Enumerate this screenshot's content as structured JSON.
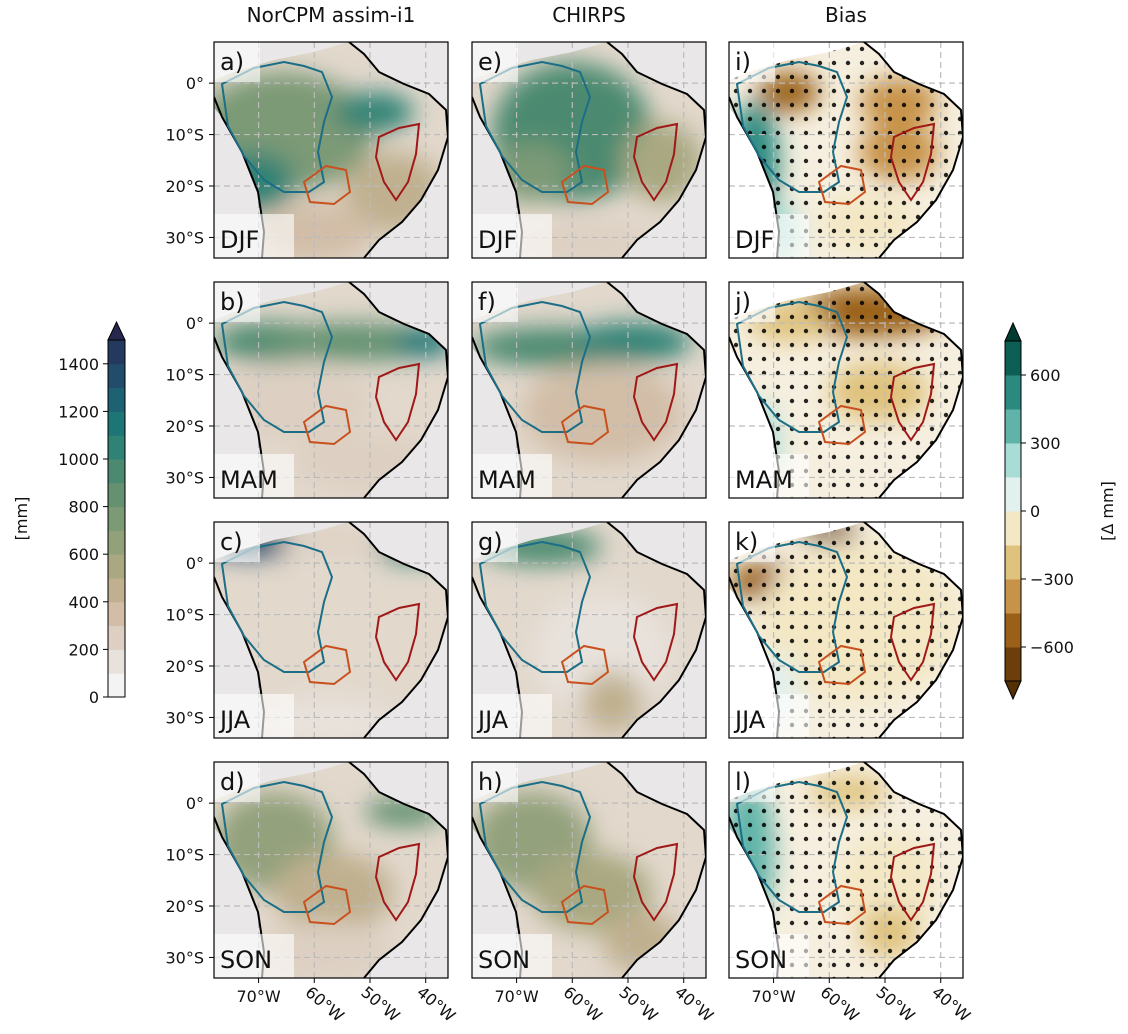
{
  "columns": [
    "NorCPM assim-i1",
    "CHIRPS",
    "Bias"
  ],
  "rows": [
    {
      "season": "DJF",
      "panels": [
        "a)",
        "e)",
        "i)"
      ]
    },
    {
      "season": "MAM",
      "panels": [
        "b)",
        "f)",
        "j)"
      ]
    },
    {
      "season": "JJA",
      "panels": [
        "c)",
        "g)",
        "k)"
      ]
    },
    {
      "season": "SON",
      "panels": [
        "d)",
        "h)",
        "l)"
      ]
    }
  ],
  "lat_range": [
    -34,
    8
  ],
  "lat_ticks": [
    {
      "value": 0,
      "label": "0°"
    },
    {
      "value": -10,
      "label": "10°S"
    },
    {
      "value": -20,
      "label": "20°S"
    },
    {
      "value": -30,
      "label": "30°S"
    }
  ],
  "lon_range": [
    -78,
    -36
  ],
  "lon_ticks": [
    {
      "value": -70,
      "label": "70°W"
    },
    {
      "value": -60,
      "label": "60°W"
    },
    {
      "value": -50,
      "label": "50°W"
    },
    {
      "value": -40,
      "label": "40°W"
    }
  ],
  "colorbar_left": {
    "label": "[mm]",
    "ylim": [
      0,
      1500
    ],
    "ticks": [
      0,
      200,
      400,
      600,
      800,
      1000,
      1200,
      1400
    ],
    "colors": [
      "#f4f3f3",
      "#e8e2dc",
      "#ddd0c2",
      "#d2bea7",
      "#c0b08f",
      "#a9a881",
      "#93a17b",
      "#7c9a76",
      "#649271",
      "#4b8a70",
      "#2f8274",
      "#1d7576",
      "#1d6173",
      "#214c6a",
      "#233a5e"
    ],
    "extend_color": "#26284d"
  },
  "colorbar_right": {
    "label": "[Δ mm]",
    "ylim": [
      -750,
      750
    ],
    "ticks": [
      {
        "value": -600,
        "label": "−600"
      },
      {
        "value": -300,
        "label": "−300"
      },
      0,
      300,
      600
    ],
    "colors": [
      "#6b3e0b",
      "#9a6019",
      "#c79348",
      "#dfc27d",
      "#f3e7c4",
      "#e2f0ee",
      "#a8ddd5",
      "#5fb3a8",
      "#2a8a80",
      "#0d5e55"
    ],
    "extend_low": "#543005",
    "extend_high": "#003c30"
  }
}
